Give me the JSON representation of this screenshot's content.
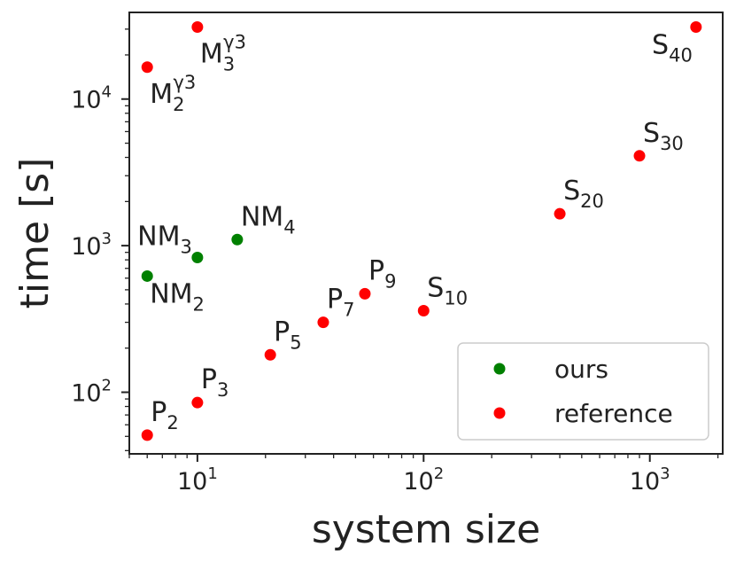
{
  "chart_data": {
    "type": "scatter",
    "xscale": "log",
    "yscale": "log",
    "xlabel": "system size",
    "ylabel": "time [s]",
    "xlim": [
      5,
      2100
    ],
    "ylim": [
      38,
      39000
    ],
    "x_ticks": [
      {
        "value": 10,
        "base": "10",
        "exp": "1"
      },
      {
        "value": 100,
        "base": "10",
        "exp": "2"
      },
      {
        "value": 1000,
        "base": "10",
        "exp": "3"
      }
    ],
    "y_ticks": [
      {
        "value": 100,
        "base": "10",
        "exp": "2"
      },
      {
        "value": 1000,
        "base": "10",
        "exp": "3"
      },
      {
        "value": 10000,
        "base": "10",
        "exp": "4"
      }
    ],
    "series": [
      {
        "name": "ours",
        "color": "#008000",
        "points": [
          {
            "x": 6,
            "y": 620,
            "base": "NM",
            "sub": "2",
            "sup": "",
            "pos": "below-right"
          },
          {
            "x": 10,
            "y": 830,
            "base": "NM",
            "sub": "3",
            "sup": "",
            "pos": "above-left"
          },
          {
            "x": 15,
            "y": 1100,
            "base": "NM",
            "sub": "4",
            "sup": "",
            "pos": "above-right"
          }
        ]
      },
      {
        "name": "reference",
        "color": "#ff0000",
        "points": [
          {
            "x": 6,
            "y": 51,
            "base": "P",
            "sub": "2",
            "sup": "",
            "pos": "above-right"
          },
          {
            "x": 10,
            "y": 85,
            "base": "P",
            "sub": "3",
            "sup": "",
            "pos": "above-right"
          },
          {
            "x": 21,
            "y": 180,
            "base": "P",
            "sub": "5",
            "sup": "",
            "pos": "above-right"
          },
          {
            "x": 36,
            "y": 300,
            "base": "P",
            "sub": "7",
            "sup": "",
            "pos": "above-right"
          },
          {
            "x": 55,
            "y": 470,
            "base": "P",
            "sub": "9",
            "sup": "",
            "pos": "above-right"
          },
          {
            "x": 100,
            "y": 360,
            "base": "S",
            "sub": "10",
            "sup": "",
            "pos": "above-right"
          },
          {
            "x": 400,
            "y": 1650,
            "base": "S",
            "sub": "20",
            "sup": "",
            "pos": "above-right"
          },
          {
            "x": 900,
            "y": 4100,
            "base": "S",
            "sub": "30",
            "sup": "",
            "pos": "above-right"
          },
          {
            "x": 1600,
            "y": 31000,
            "base": "S",
            "sub": "40",
            "sup": "",
            "pos": "below-left"
          },
          {
            "x": 6,
            "y": 16500,
            "base": "M",
            "sub": "2",
            "sup": "γ3",
            "pos": "below-right"
          },
          {
            "x": 10,
            "y": 31000,
            "base": "M",
            "sub": "3",
            "sup": "γ3",
            "pos": "below-right"
          }
        ]
      }
    ],
    "legend": {
      "position": "bottom-right",
      "entries": [
        {
          "label": "ours",
          "color": "#008000"
        },
        {
          "label": "reference",
          "color": "#ff0000"
        }
      ]
    }
  }
}
